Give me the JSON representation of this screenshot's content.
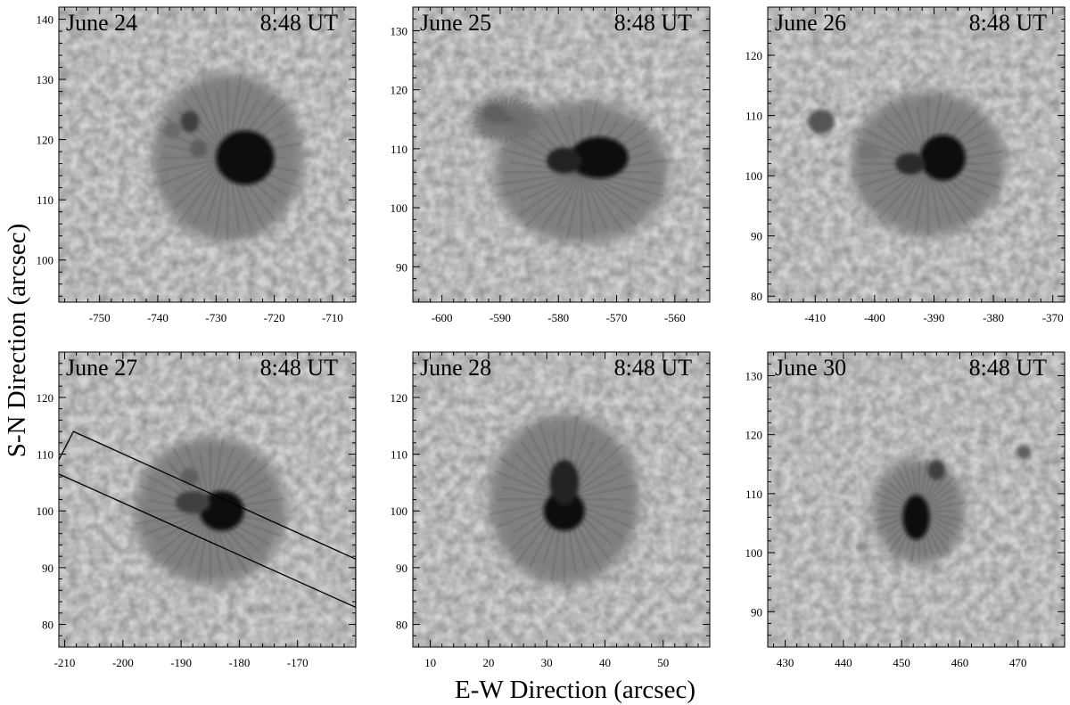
{
  "figure": {
    "ylabel": "S-N Direction (arcsec)",
    "xlabel": "E-W Direction (arcsec)"
  },
  "panels": [
    {
      "date": "June 24",
      "time": "8:48 UT",
      "xlim": [
        -757,
        -706
      ],
      "ylim": [
        93,
        142
      ],
      "xticks": [
        -750,
        -740,
        -730,
        -720,
        -710
      ],
      "yticks": [
        100,
        110,
        120,
        130,
        140
      ],
      "features": [
        {
          "kind": "penumbra",
          "x": -728,
          "y": 117,
          "rx": 13,
          "ry": 14,
          "darkness": 0.42
        },
        {
          "kind": "umbra",
          "x": -725,
          "y": 117,
          "rx": 5,
          "ry": 4.5,
          "darkness": 0.95
        },
        {
          "kind": "pore",
          "x": -734.5,
          "y": 123,
          "rx": 1.6,
          "ry": 1.8,
          "darkness": 0.7
        },
        {
          "kind": "pore",
          "x": -737.5,
          "y": 121.5,
          "rx": 1.5,
          "ry": 1.3,
          "darkness": 0.5
        },
        {
          "kind": "pore",
          "x": -733,
          "y": 118.5,
          "rx": 1.5,
          "ry": 1.5,
          "darkness": 0.55
        }
      ]
    },
    {
      "date": "June 25",
      "time": "8:48 UT",
      "xlim": [
        -605,
        -554
      ],
      "ylim": [
        84,
        134
      ],
      "xticks": [
        -600,
        -590,
        -580,
        -570,
        -560
      ],
      "yticks": [
        90,
        100,
        110,
        120,
        130
      ],
      "features": [
        {
          "kind": "penumbra",
          "x": -576,
          "y": 106,
          "rx": 15,
          "ry": 12,
          "darkness": 0.42
        },
        {
          "kind": "penumbra",
          "x": -589,
          "y": 115,
          "rx": 6,
          "ry": 4,
          "darkness": 0.45
        },
        {
          "kind": "umbra",
          "x": -573,
          "y": 108.5,
          "rx": 5,
          "ry": 3.5,
          "darkness": 0.95
        },
        {
          "kind": "umbra",
          "x": -579,
          "y": 108,
          "rx": 3,
          "ry": 2.2,
          "darkness": 0.85
        },
        {
          "kind": "pore",
          "x": -591,
          "y": 116,
          "rx": 2,
          "ry": 1.5,
          "darkness": 0.55
        }
      ]
    },
    {
      "date": "June 26",
      "time": "8:48 UT",
      "xlim": [
        -418,
        -368
      ],
      "ylim": [
        79,
        128
      ],
      "xticks": [
        -410,
        -400,
        -390,
        -380,
        -370
      ],
      "yticks": [
        80,
        90,
        100,
        110,
        120
      ],
      "features": [
        {
          "kind": "penumbra",
          "x": -391,
          "y": 102,
          "rx": 13,
          "ry": 12,
          "darkness": 0.42
        },
        {
          "kind": "umbra",
          "x": -388.5,
          "y": 103,
          "rx": 3.8,
          "ry": 3.8,
          "darkness": 0.95
        },
        {
          "kind": "umbra",
          "x": -394,
          "y": 102,
          "rx": 2.5,
          "ry": 1.8,
          "darkness": 0.8
        },
        {
          "kind": "pore",
          "x": -409,
          "y": 109,
          "rx": 2.2,
          "ry": 2,
          "darkness": 0.6
        },
        {
          "kind": "pore",
          "x": -401,
          "y": 104,
          "rx": 2,
          "ry": 1.3,
          "darkness": 0.45
        }
      ]
    },
    {
      "date": "June 27",
      "time": "8:48 UT",
      "xlim": [
        -211,
        -160
      ],
      "ylim": [
        76,
        128
      ],
      "xticks": [
        -210,
        -200,
        -190,
        -180,
        -170
      ],
      "yticks": [
        80,
        90,
        100,
        110,
        120
      ],
      "features": [
        {
          "kind": "penumbra",
          "x": -185,
          "y": 100,
          "rx": 13,
          "ry": 13,
          "darkness": 0.42
        },
        {
          "kind": "umbra",
          "x": -183,
          "y": 100,
          "rx": 3.8,
          "ry": 3.5,
          "darkness": 0.95
        },
        {
          "kind": "umbra",
          "x": -188,
          "y": 101.5,
          "rx": 3,
          "ry": 2,
          "darkness": 0.7
        },
        {
          "kind": "pore",
          "x": -188.5,
          "y": 106,
          "rx": 1.5,
          "ry": 1.5,
          "darkness": 0.55
        }
      ],
      "slit": [
        [
          -211,
          109
        ],
        [
          -208.5,
          114
        ],
        [
          -160,
          91.5
        ],
        [
          -160,
          83
        ],
        [
          -211,
          106.5
        ]
      ]
    },
    {
      "date": "June 28",
      "time": "8:48 UT",
      "xlim": [
        7,
        58
      ],
      "ylim": [
        76,
        128
      ],
      "xticks": [
        10,
        20,
        30,
        40,
        50
      ],
      "yticks": [
        80,
        90,
        100,
        110,
        120
      ],
      "features": [
        {
          "kind": "penumbra",
          "x": 33,
          "y": 102,
          "rx": 13,
          "ry": 15,
          "darkness": 0.42
        },
        {
          "kind": "umbra",
          "x": 33,
          "y": 100,
          "rx": 3.5,
          "ry": 3.5,
          "darkness": 0.95
        },
        {
          "kind": "umbra",
          "x": 33,
          "y": 105,
          "rx": 2.5,
          "ry": 4,
          "darkness": 0.85
        }
      ]
    },
    {
      "date": "June 30",
      "time": "8:48 UT",
      "xlim": [
        427,
        478
      ],
      "ylim": [
        84,
        134
      ],
      "xticks": [
        430,
        440,
        450,
        460,
        470
      ],
      "yticks": [
        90,
        100,
        110,
        120,
        130
      ],
      "features": [
        {
          "kind": "penumbra",
          "x": 453,
          "y": 107,
          "rx": 8,
          "ry": 9,
          "darkness": 0.42
        },
        {
          "kind": "umbra",
          "x": 452.5,
          "y": 106,
          "rx": 2.3,
          "ry": 3.8,
          "darkness": 0.95
        },
        {
          "kind": "umbra",
          "x": 456,
          "y": 114,
          "rx": 1.5,
          "ry": 1.7,
          "darkness": 0.7
        },
        {
          "kind": "pore",
          "x": 471,
          "y": 117,
          "rx": 1.2,
          "ry": 1.2,
          "darkness": 0.55
        },
        {
          "kind": "pore",
          "x": 443,
          "y": 101,
          "rx": 0.8,
          "ry": 0.8,
          "darkness": 0.35
        }
      ]
    }
  ]
}
